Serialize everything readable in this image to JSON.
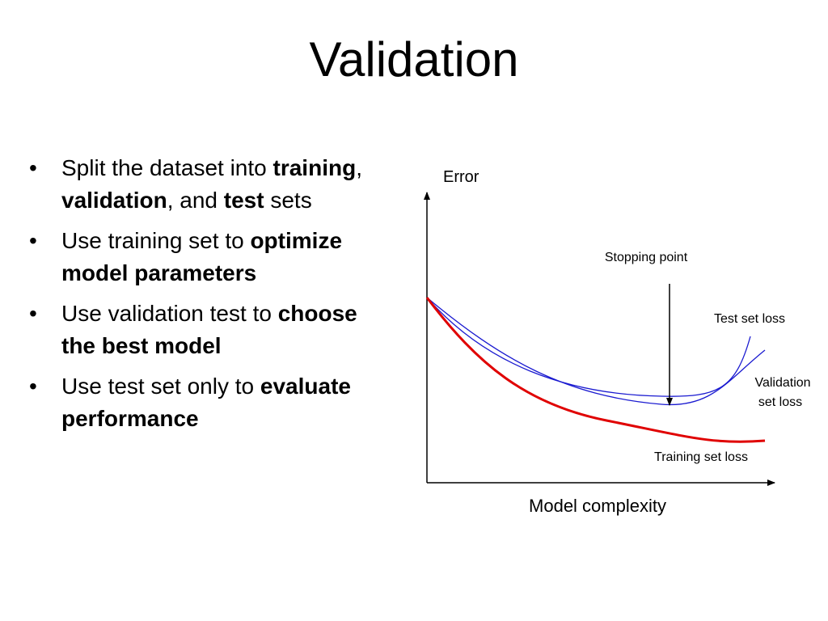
{
  "slide": {
    "title": "Validation"
  },
  "bullets": [
    {
      "parts": [
        {
          "text": "Split the dataset into ",
          "bold": false
        },
        {
          "text": "training",
          "bold": true
        },
        {
          "text": ", ",
          "bold": false
        },
        {
          "text": "validation",
          "bold": true
        },
        {
          "text": ", and ",
          "bold": false
        },
        {
          "text": "test",
          "bold": true
        },
        {
          "text": " sets",
          "bold": false
        }
      ]
    },
    {
      "parts": [
        {
          "text": "Use training set to ",
          "bold": false
        },
        {
          "text": "optimize model parameters",
          "bold": true
        }
      ]
    },
    {
      "parts": [
        {
          "text": "Use validation test to ",
          "bold": false
        },
        {
          "text": "choose the best model",
          "bold": true
        }
      ]
    },
    {
      "parts": [
        {
          "text": "Use test set only to ",
          "bold": false
        },
        {
          "text": "evaluate performance",
          "bold": true
        }
      ]
    }
  ],
  "diagram": {
    "y_axis_label": "Error",
    "x_axis_label": "Model complexity",
    "stopping_point_label": "Stopping point",
    "curve_labels": {
      "test": "Test set loss",
      "validation_line1": "Validation",
      "validation_line2": "set loss",
      "training": "Training set loss"
    },
    "colors": {
      "training_curve": "#e00000",
      "validation_curve": "#1a1ad0",
      "test_curve": "#1a1ad0",
      "axis": "#000000"
    }
  }
}
